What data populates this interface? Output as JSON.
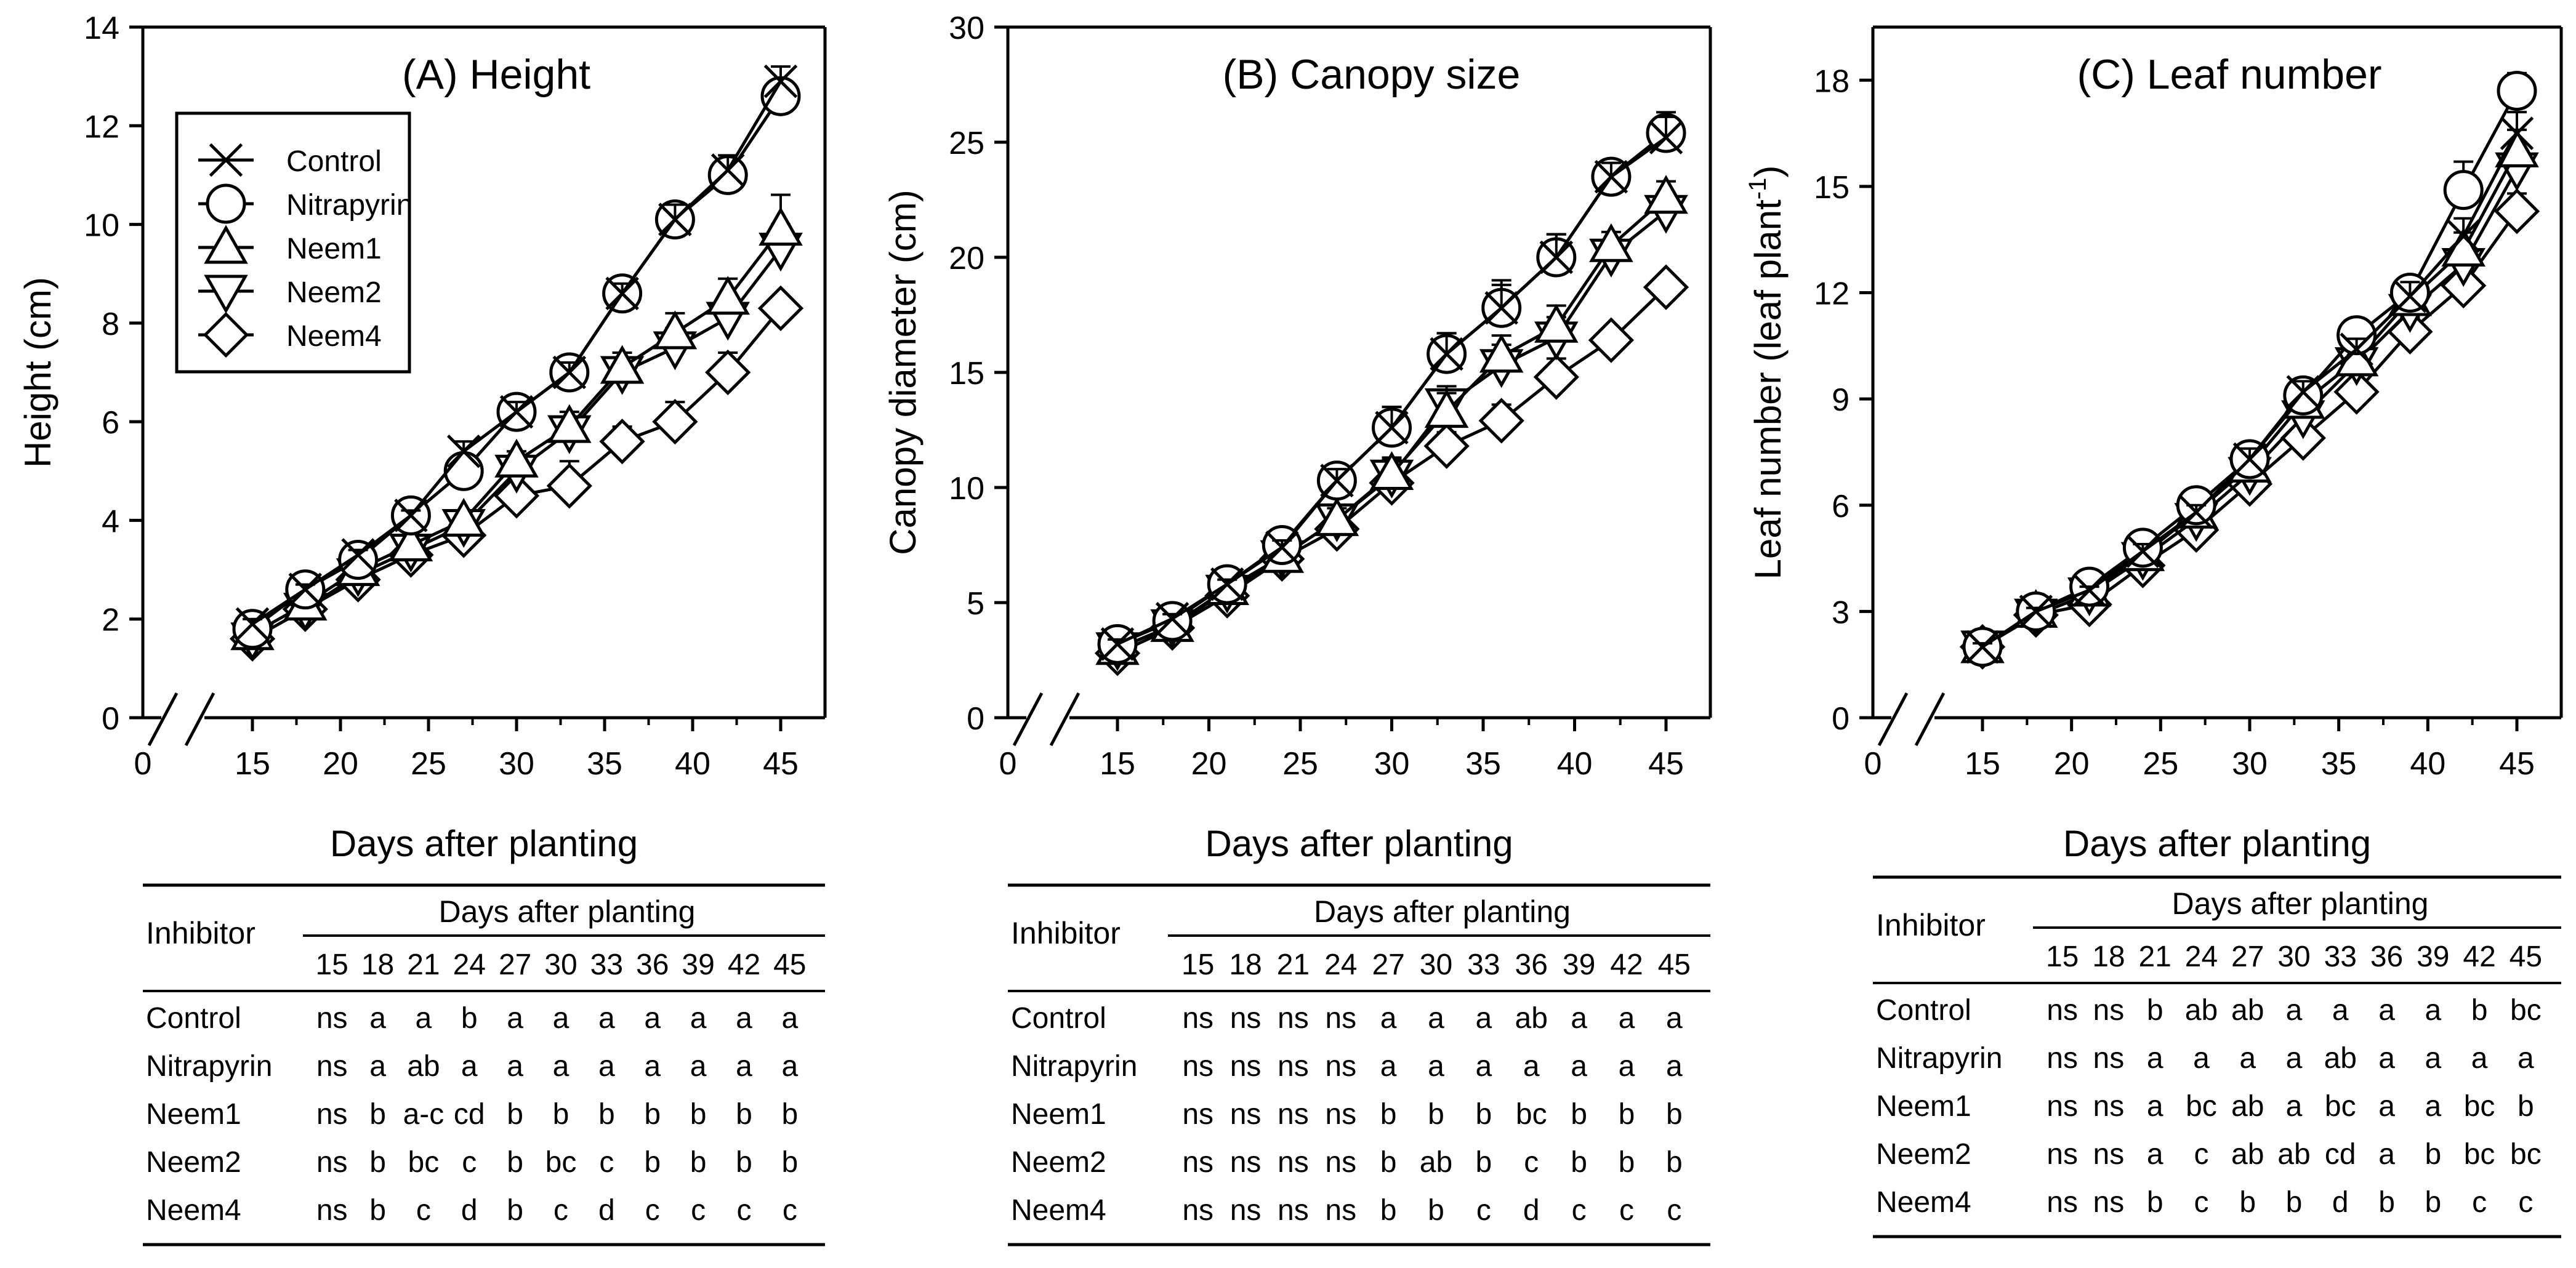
{
  "shared": {
    "xlabel": "Days after planting",
    "x_ticks": [
      "0",
      "15",
      "20",
      "25",
      "30",
      "35",
      "40",
      "45"
    ],
    "legend": {
      "placement": "top-left of panel A",
      "entries": [
        {
          "name": "Control",
          "marker": "x"
        },
        {
          "name": "Nitrapyrin",
          "marker": "circle"
        },
        {
          "name": "Neem1",
          "marker": "triangle-up"
        },
        {
          "name": "Neem2",
          "marker": "triangle-down"
        },
        {
          "name": "Neem4",
          "marker": "diamond"
        }
      ]
    },
    "table_header": {
      "col1": "Inhibitor",
      "group": "Days after planting",
      "days": [
        "15",
        "18",
        "21",
        "24",
        "27",
        "30",
        "33",
        "36",
        "39",
        "42",
        "45"
      ]
    }
  },
  "chart_data": [
    {
      "type": "line",
      "title": "(A) Height",
      "xlabel": "Days after planting",
      "ylabel": "Height (cm)",
      "xlim": [
        15,
        45
      ],
      "ylim": [
        0,
        14
      ],
      "y_ticks": [
        "0",
        "2",
        "4",
        "6",
        "8",
        "10",
        "12",
        "14"
      ],
      "y_tick_values": [
        0,
        2,
        4,
        6,
        8,
        10,
        12,
        14
      ],
      "x": [
        15,
        18,
        21,
        24,
        27,
        30,
        33,
        36,
        39,
        42,
        45
      ],
      "series": [
        {
          "name": "Control",
          "values": [
            1.9,
            2.6,
            3.3,
            4.1,
            5.4,
            6.2,
            7.0,
            8.6,
            10.1,
            11.1,
            12.9
          ],
          "errors": [
            0.1,
            0.1,
            0.1,
            0.1,
            0.2,
            0.2,
            0.2,
            0.2,
            0.3,
            0.3,
            0.3
          ]
        },
        {
          "name": "Nitrapyrin",
          "values": [
            1.8,
            2.6,
            3.2,
            4.1,
            5.0,
            6.2,
            7.0,
            8.6,
            10.1,
            11.0,
            12.6
          ],
          "errors": [
            0.1,
            0.1,
            0.1,
            0.1,
            0.2,
            0.2,
            0.2,
            0.2,
            0.3,
            0.3,
            0.3
          ]
        },
        {
          "name": "Neem1",
          "values": [
            1.7,
            2.3,
            3.0,
            3.5,
            4.0,
            5.2,
            5.9,
            7.1,
            7.8,
            8.5,
            9.9
          ],
          "errors": [
            0.1,
            0.1,
            0.1,
            0.2,
            0.2,
            0.2,
            0.3,
            0.3,
            0.4,
            0.4,
            0.7
          ]
        },
        {
          "name": "Neem2",
          "values": [
            1.6,
            2.2,
            2.9,
            3.4,
            3.9,
            5.0,
            5.8,
            7.0,
            7.5,
            8.1,
            9.5
          ],
          "errors": [
            0.1,
            0.1,
            0.1,
            0.2,
            0.2,
            0.3,
            0.3,
            0.3,
            0.4,
            0.4,
            0.5
          ]
        },
        {
          "name": "Neem4",
          "values": [
            1.6,
            2.2,
            2.8,
            3.3,
            3.7,
            4.5,
            4.7,
            5.6,
            6.0,
            7.0,
            8.3
          ],
          "errors": [
            0.1,
            0.1,
            0.1,
            0.2,
            0.4,
            0.4,
            0.5,
            0.3,
            0.4,
            0.4,
            0.2
          ]
        }
      ],
      "table": [
        {
          "inhibitor": "Control",
          "letters": [
            "ns",
            "a",
            "a",
            "b",
            "a",
            "a",
            "a",
            "a",
            "a",
            "a",
            "a"
          ]
        },
        {
          "inhibitor": "Nitrapyrin",
          "letters": [
            "ns",
            "a",
            "ab",
            "a",
            "a",
            "a",
            "a",
            "a",
            "a",
            "a",
            "a"
          ]
        },
        {
          "inhibitor": "Neem1",
          "letters": [
            "ns",
            "b",
            "a-c",
            "cd",
            "b",
            "b",
            "b",
            "b",
            "b",
            "b",
            "b"
          ]
        },
        {
          "inhibitor": "Neem2",
          "letters": [
            "ns",
            "b",
            "bc",
            "c",
            "b",
            "bc",
            "c",
            "b",
            "b",
            "b",
            "b"
          ]
        },
        {
          "inhibitor": "Neem4",
          "letters": [
            "ns",
            "b",
            "c",
            "d",
            "b",
            "c",
            "d",
            "c",
            "c",
            "c",
            "c"
          ]
        }
      ]
    },
    {
      "type": "line",
      "title": "(B) Canopy size",
      "xlabel": "Days after planting",
      "ylabel": "Canopy diameter (cm)",
      "xlim": [
        15,
        45
      ],
      "ylim": [
        0,
        30
      ],
      "y_ticks": [
        "0",
        "5",
        "10",
        "15",
        "20",
        "25",
        "30"
      ],
      "y_tick_values": [
        0,
        5,
        10,
        15,
        20,
        25,
        30
      ],
      "x": [
        15,
        18,
        21,
        24,
        27,
        30,
        33,
        36,
        39,
        42,
        45
      ],
      "series": [
        {
          "name": "Control",
          "values": [
            3.2,
            4.3,
            5.8,
            7.4,
            10.3,
            12.6,
            15.8,
            17.8,
            20.0,
            23.5,
            25.2
          ],
          "errors": [
            0.2,
            0.2,
            0.2,
            0.3,
            0.5,
            0.9,
            0.9,
            1.0,
            1.0,
            0.6,
            0.9
          ]
        },
        {
          "name": "Nitrapyrin",
          "values": [
            3.2,
            4.2,
            5.8,
            7.5,
            10.3,
            12.6,
            15.8,
            17.8,
            20.0,
            23.5,
            25.4
          ],
          "errors": [
            0.2,
            0.2,
            0.2,
            0.3,
            0.5,
            0.9,
            0.9,
            1.2,
            1.0,
            0.6,
            0.9
          ]
        },
        {
          "name": "Neem1",
          "values": [
            3.0,
            4.0,
            5.6,
            7.0,
            8.6,
            10.6,
            13.3,
            15.7,
            17.0,
            20.5,
            22.6
          ],
          "errors": [
            0.2,
            0.2,
            0.2,
            0.3,
            0.5,
            0.7,
            0.8,
            0.9,
            0.9,
            0.6,
            0.7
          ]
        },
        {
          "name": "Neem2",
          "values": [
            3.0,
            4.0,
            5.5,
            7.0,
            8.6,
            10.5,
            13.6,
            15.3,
            16.5,
            20.1,
            22.0
          ],
          "errors": [
            0.2,
            0.2,
            0.2,
            0.3,
            0.5,
            0.7,
            0.8,
            0.9,
            0.9,
            0.6,
            0.7
          ]
        },
        {
          "name": "Neem4",
          "values": [
            2.8,
            3.9,
            5.3,
            6.9,
            8.2,
            10.2,
            11.8,
            12.9,
            14.8,
            16.4,
            18.7
          ],
          "errors": [
            0.2,
            0.2,
            0.2,
            0.3,
            0.4,
            0.5,
            0.6,
            0.7,
            0.8,
            0.5,
            0.5
          ]
        }
      ],
      "table": [
        {
          "inhibitor": "Control",
          "letters": [
            "ns",
            "ns",
            "ns",
            "ns",
            "a",
            "a",
            "a",
            "ab",
            "a",
            "a",
            "a"
          ]
        },
        {
          "inhibitor": "Nitrapyrin",
          "letters": [
            "ns",
            "ns",
            "ns",
            "ns",
            "a",
            "a",
            "a",
            "a",
            "a",
            "a",
            "a"
          ]
        },
        {
          "inhibitor": "Neem1",
          "letters": [
            "ns",
            "ns",
            "ns",
            "ns",
            "b",
            "b",
            "b",
            "bc",
            "b",
            "b",
            "b"
          ]
        },
        {
          "inhibitor": "Neem2",
          "letters": [
            "ns",
            "ns",
            "ns",
            "ns",
            "b",
            "ab",
            "b",
            "c",
            "b",
            "b",
            "b"
          ]
        },
        {
          "inhibitor": "Neem4",
          "letters": [
            "ns",
            "ns",
            "ns",
            "ns",
            "b",
            "b",
            "c",
            "d",
            "c",
            "c",
            "c"
          ]
        }
      ]
    },
    {
      "type": "line",
      "title": "(C) Leaf number",
      "xlabel": "Days after planting",
      "ylabel": "Leaf number (leaf plant",
      "ylabel_sup": "-1",
      "ylabel_tail": ")",
      "xlim": [
        15,
        45
      ],
      "ylim": [
        0,
        19.5
      ],
      "y_ticks": [
        "0",
        "3",
        "6",
        "9",
        "12",
        "15",
        "18"
      ],
      "y_tick_values": [
        0,
        3,
        6,
        9,
        12,
        15,
        18
      ],
      "x": [
        15,
        18,
        21,
        24,
        27,
        30,
        33,
        36,
        39,
        42,
        45
      ],
      "series": [
        {
          "name": "Control",
          "values": [
            2.0,
            3.0,
            3.6,
            4.7,
            5.8,
            7.3,
            9.2,
            10.4,
            11.9,
            13.6,
            16.5
          ],
          "errors": [
            0.1,
            0.1,
            0.1,
            0.2,
            0.2,
            0.3,
            0.3,
            0.3,
            0.4,
            0.5,
            0.6
          ]
        },
        {
          "name": "Nitrapyrin",
          "values": [
            2.0,
            3.0,
            3.7,
            4.8,
            6.0,
            7.3,
            9.1,
            10.8,
            12.0,
            14.9,
            17.7
          ],
          "errors": [
            0.1,
            0.1,
            0.1,
            0.2,
            0.2,
            0.3,
            0.3,
            0.3,
            0.4,
            0.8,
            0.5
          ]
        },
        {
          "name": "Neem1",
          "values": [
            2.0,
            3.0,
            3.6,
            4.6,
            5.8,
            7.1,
            8.9,
            10.1,
            11.8,
            13.2,
            16.0
          ],
          "errors": [
            0.1,
            0.1,
            0.1,
            0.2,
            0.2,
            0.3,
            0.3,
            0.3,
            0.4,
            0.5,
            0.6
          ]
        },
        {
          "name": "Neem2",
          "values": [
            2.0,
            2.9,
            3.5,
            4.5,
            5.6,
            6.9,
            8.5,
            10.0,
            11.5,
            12.8,
            15.5
          ],
          "errors": [
            0.1,
            0.1,
            0.1,
            0.2,
            0.2,
            0.3,
            0.3,
            0.3,
            0.4,
            0.5,
            0.6
          ]
        },
        {
          "name": "Neem4",
          "values": [
            2.0,
            2.9,
            3.2,
            4.3,
            5.3,
            6.6,
            7.9,
            9.2,
            10.9,
            12.2,
            14.3
          ],
          "errors": [
            0.1,
            0.1,
            0.1,
            0.2,
            0.2,
            0.3,
            0.3,
            0.3,
            0.4,
            0.4,
            0.5
          ]
        }
      ],
      "table": [
        {
          "inhibitor": "Control",
          "letters": [
            "ns",
            "ns",
            "b",
            "ab",
            "ab",
            "a",
            "a",
            "a",
            "a",
            "b",
            "bc"
          ]
        },
        {
          "inhibitor": "Nitrapyrin",
          "letters": [
            "ns",
            "ns",
            "a",
            "a",
            "a",
            "a",
            "ab",
            "a",
            "a",
            "a",
            "a"
          ]
        },
        {
          "inhibitor": "Neem1",
          "letters": [
            "ns",
            "ns",
            "a",
            "bc",
            "ab",
            "a",
            "bc",
            "a",
            "a",
            "bc",
            "b"
          ]
        },
        {
          "inhibitor": "Neem2",
          "letters": [
            "ns",
            "ns",
            "a",
            "c",
            "ab",
            "ab",
            "cd",
            "a",
            "b",
            "bc",
            "bc"
          ]
        },
        {
          "inhibitor": "Neem4",
          "letters": [
            "ns",
            "ns",
            "b",
            "c",
            "b",
            "b",
            "d",
            "b",
            "b",
            "c",
            "c"
          ]
        }
      ]
    }
  ]
}
